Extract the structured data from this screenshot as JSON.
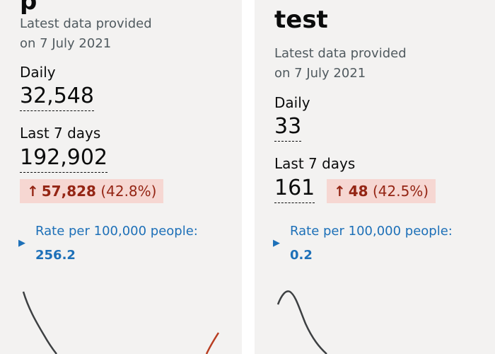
{
  "left_card": {
    "title_fragment": "p",
    "latest_line1": "Latest data provided",
    "latest_line2": "on 7 July 2021",
    "daily_label": "Daily",
    "daily_value": "32,548",
    "week_label": "Last 7 days",
    "week_value": "192,902",
    "change_arrow": "↑",
    "change_number": "57,828",
    "change_percent": "(42.8%)",
    "rate_toggle_icon": "triangle-right-icon",
    "rate_label": "Rate per 100,000 people:",
    "rate_value": "256.2"
  },
  "right_card": {
    "title_fragment": "test",
    "latest_line1": "Latest data provided",
    "latest_line2": "on 7 July 2021",
    "daily_label": "Daily",
    "daily_value": "33",
    "week_label": "Last 7 days",
    "week_value": "161",
    "change_arrow": "↑",
    "change_number": "48",
    "change_percent": "(42.5%)",
    "rate_toggle_icon": "triangle-right-icon",
    "rate_label": "Rate per 100,000 people:",
    "rate_value": "0.2"
  },
  "colors": {
    "card_bg": "#f3f2f1",
    "increase_bg": "#f6d7d2",
    "increase_text": "#942514",
    "link_blue": "#1d70b8",
    "sparkline": "#3d4042",
    "sparkline_recent": "#b83d21"
  }
}
